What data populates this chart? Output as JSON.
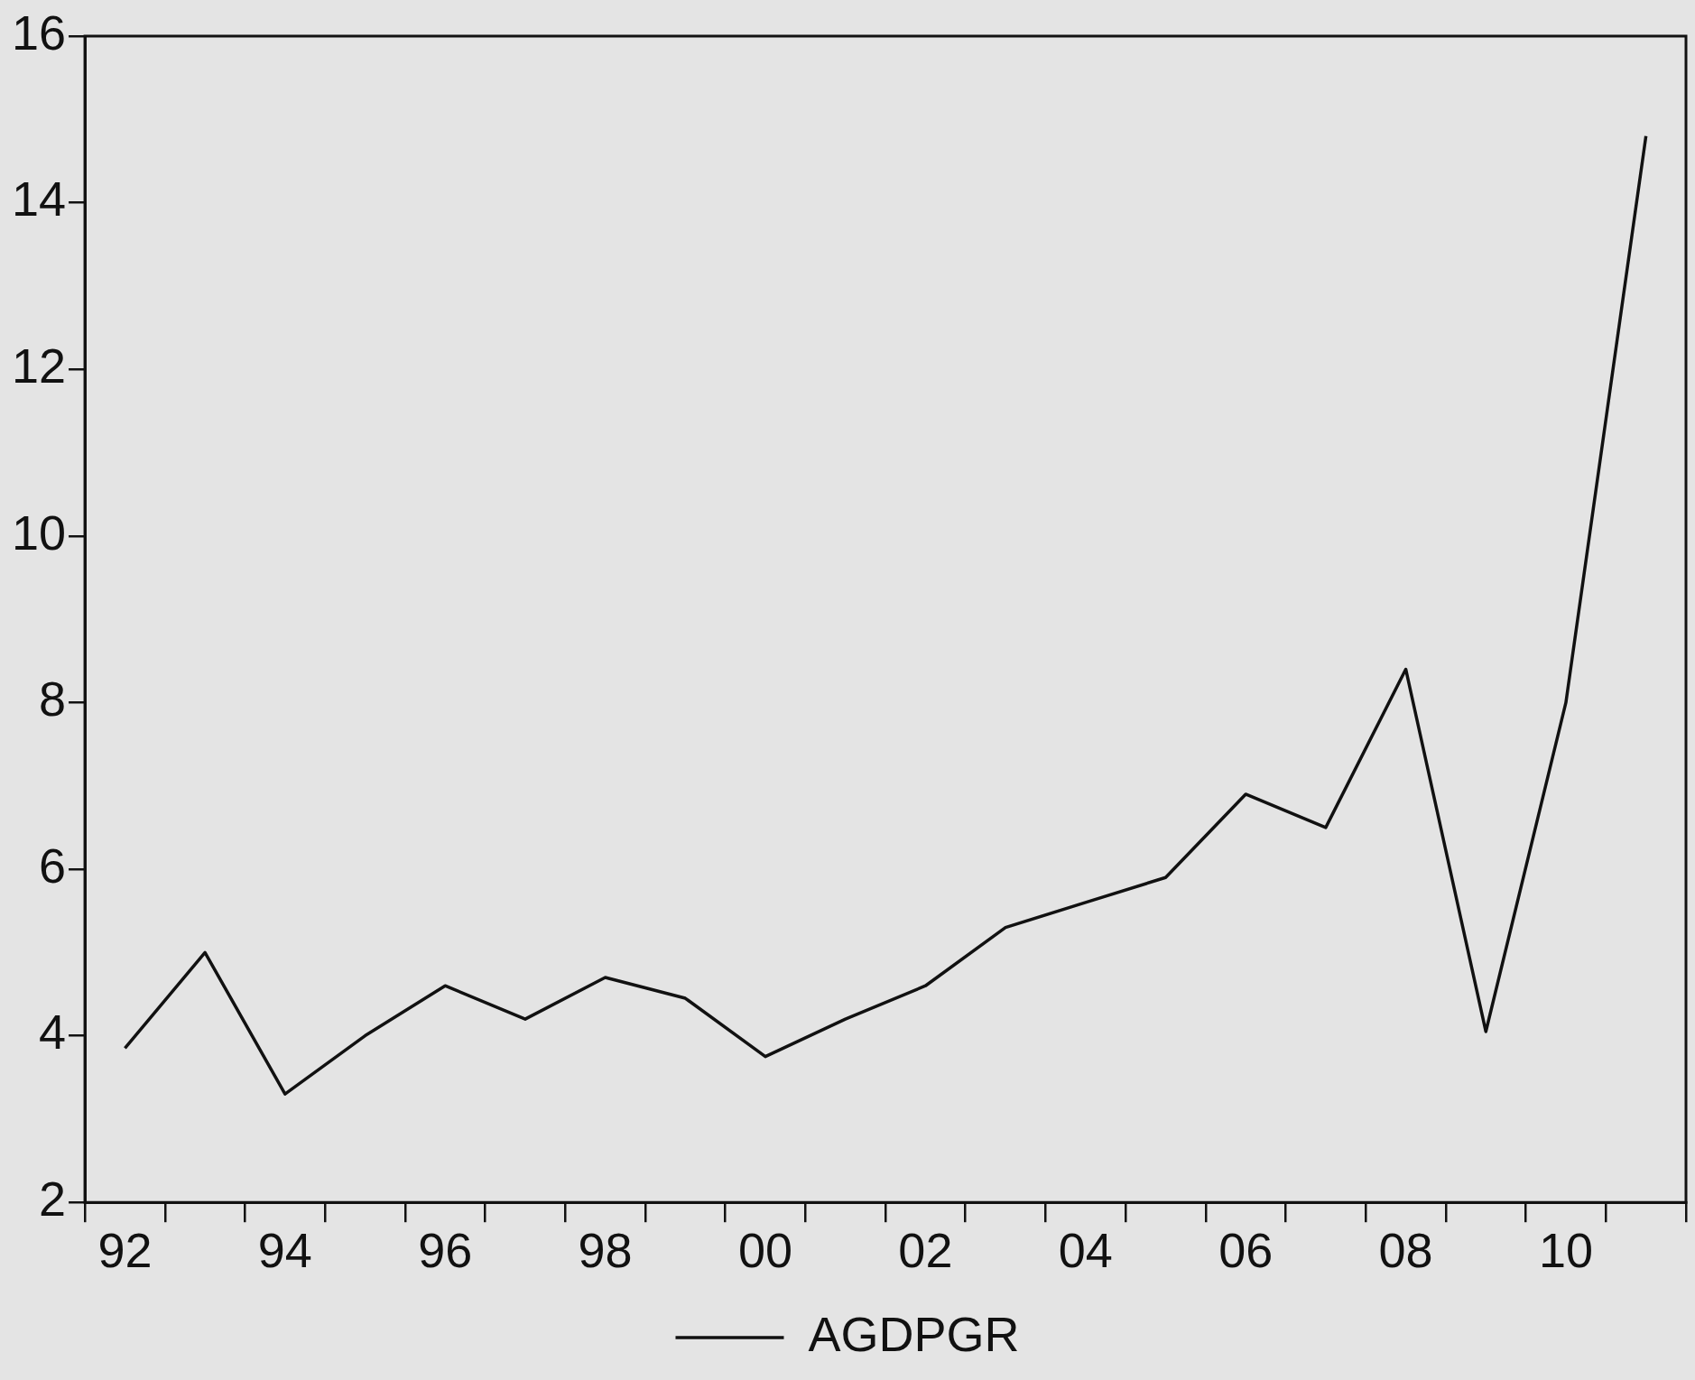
{
  "chart_data": {
    "type": "line",
    "categories": [
      "92",
      null,
      "94",
      null,
      "96",
      null,
      "98",
      null,
      "00",
      null,
      "02",
      null,
      "04",
      null,
      "06",
      null,
      "08",
      null,
      "10",
      null
    ],
    "series": [
      {
        "name": "AGDPGR",
        "color": "#111111",
        "values": [
          3.85,
          5.0,
          3.3,
          4.0,
          4.6,
          4.2,
          4.7,
          4.45,
          3.75,
          4.2,
          4.6,
          5.3,
          5.6,
          5.9,
          6.9,
          6.5,
          8.4,
          4.05,
          8.0,
          14.8
        ]
      }
    ],
    "ylim": [
      2,
      16
    ],
    "yticks": [
      2,
      4,
      6,
      8,
      10,
      12,
      14,
      16
    ],
    "grid": false,
    "legend": "bottom",
    "marker": "none",
    "line_style": "solid"
  }
}
